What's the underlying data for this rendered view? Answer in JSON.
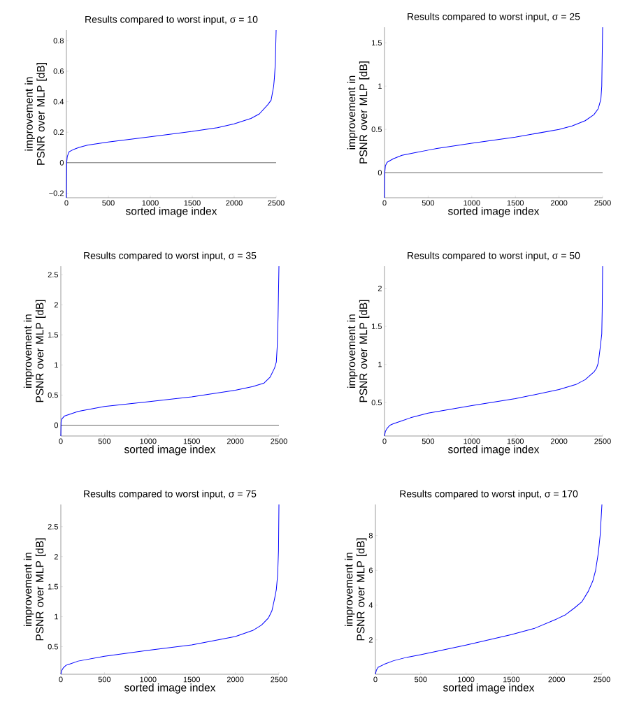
{
  "chart_data": [
    {
      "type": "line",
      "title": "Results compared to worst input, σ = 10",
      "xlabel": "sorted image index",
      "ylabel": "improvement in PSNR over MLP [dB]",
      "color": "#0000ff",
      "xlim": [
        0,
        2500
      ],
      "ylim": [
        -0.23,
        0.87
      ],
      "xticks": [
        0,
        500,
        1000,
        1500,
        2000,
        2500
      ],
      "yticks": [
        {
          "value": -0.2,
          "label": "−0.2"
        },
        0,
        0.2,
        0.4,
        0.6,
        0.8
      ],
      "ref_lines": [
        {
          "axis": "y",
          "value": 0,
          "color": "#000000"
        }
      ],
      "x": [
        0,
        3,
        10,
        30,
        60,
        100,
        150,
        250,
        500,
        1000,
        1500,
        1800,
        2000,
        2200,
        2300,
        2400,
        2440,
        2470,
        2480,
        2490,
        2500
      ],
      "values": [
        -0.23,
        0,
        0.04,
        0.07,
        0.08,
        0.09,
        0.1,
        0.115,
        0.135,
        0.17,
        0.205,
        0.23,
        0.255,
        0.29,
        0.32,
        0.38,
        0.41,
        0.5,
        0.56,
        0.65,
        0.87
      ]
    },
    {
      "type": "line",
      "title": "Results compared to worst input, σ = 25",
      "xlabel": "sorted image index",
      "ylabel": "improvement in PSNR over MLP [dB]",
      "color": "#0000ff",
      "xlim": [
        0,
        2500
      ],
      "ylim": [
        -0.29,
        1.68
      ],
      "xticks": [
        0,
        500,
        1000,
        1500,
        2000,
        2500
      ],
      "yticks": [
        0,
        0.5,
        1,
        1.5
      ],
      "ref_lines": [
        {
          "axis": "y",
          "value": 0,
          "color": "#000000"
        }
      ],
      "x": [
        0,
        3,
        10,
        30,
        100,
        200,
        350,
        500,
        600,
        1000,
        1500,
        2000,
        2150,
        2300,
        2400,
        2450,
        2480,
        2490,
        2500
      ],
      "values": [
        -0.29,
        0,
        0.08,
        0.12,
        0.16,
        0.2,
        0.23,
        0.26,
        0.28,
        0.34,
        0.41,
        0.5,
        0.54,
        0.6,
        0.67,
        0.74,
        0.85,
        1.0,
        1.68
      ]
    },
    {
      "type": "line",
      "title": "Results compared to worst input, σ = 35",
      "xlabel": "sorted image index",
      "ylabel": "improvement in PSNR over MLP [dB]",
      "color": "#0000ff",
      "xlim": [
        0,
        2500
      ],
      "ylim": [
        -0.18,
        2.64
      ],
      "xticks": [
        0,
        500,
        1000,
        1500,
        2000,
        2500
      ],
      "yticks": [
        0,
        0.5,
        1,
        1.5,
        2,
        2.5
      ],
      "ref_lines": [
        {
          "axis": "y",
          "value": 0,
          "color": "#000000"
        }
      ],
      "x": [
        0,
        3,
        10,
        40,
        200,
        500,
        1000,
        1500,
        2000,
        2200,
        2330,
        2400,
        2450,
        2470,
        2480,
        2490,
        2500
      ],
      "values": [
        -0.18,
        0.05,
        0.1,
        0.15,
        0.23,
        0.31,
        0.39,
        0.47,
        0.58,
        0.64,
        0.7,
        0.8,
        0.95,
        1.05,
        1.3,
        1.8,
        2.64
      ]
    },
    {
      "type": "line",
      "title": "Results compared to worst input, σ = 50",
      "xlabel": "sorted image index",
      "ylabel": "improvement in PSNR over MLP [dB]",
      "color": "#0000ff",
      "xlim": [
        0,
        2500
      ],
      "ylim": [
        0.06,
        2.29
      ],
      "xticks": [
        0,
        500,
        1000,
        1500,
        2000,
        2500
      ],
      "yticks": [
        0.5,
        1,
        1.5,
        2
      ],
      "x": [
        0,
        10,
        30,
        60,
        100,
        200,
        300,
        500,
        1000,
        1500,
        2000,
        2200,
        2300,
        2400,
        2430,
        2450,
        2470,
        2490,
        2495,
        2500
      ],
      "values": [
        0.06,
        0.12,
        0.16,
        0.2,
        0.22,
        0.26,
        0.3,
        0.36,
        0.46,
        0.55,
        0.67,
        0.74,
        0.8,
        0.9,
        0.95,
        1.02,
        1.2,
        1.4,
        1.7,
        2.29
      ]
    },
    {
      "type": "line",
      "title": "Results compared to worst input, σ = 75",
      "xlabel": "sorted image index",
      "ylabel": "improvement in PSNR over MLP [dB]",
      "color": "#0000ff",
      "xlim": [
        0,
        2500
      ],
      "ylim": [
        0.04,
        2.87
      ],
      "xticks": [
        0,
        500,
        1000,
        1500,
        2000,
        2500
      ],
      "yticks": [
        0.5,
        1,
        1.5,
        2,
        2.5
      ],
      "x": [
        0,
        10,
        30,
        60,
        100,
        200,
        500,
        1000,
        1500,
        2000,
        2200,
        2300,
        2380,
        2420,
        2450,
        2470,
        2485,
        2495,
        2500
      ],
      "values": [
        0.04,
        0.1,
        0.15,
        0.19,
        0.21,
        0.26,
        0.34,
        0.44,
        0.53,
        0.67,
        0.77,
        0.86,
        0.98,
        1.1,
        1.3,
        1.45,
        1.7,
        2.1,
        2.87
      ]
    },
    {
      "type": "line",
      "title": "Results compared to worst input, σ = 170",
      "xlabel": "sorted image index",
      "ylabel": "improvement in PSNR over MLP [dB]",
      "color": "#0000ff",
      "xlim": [
        0,
        2500
      ],
      "ylim": [
        0.02,
        9.79
      ],
      "xticks": [
        0,
        500,
        1000,
        1500,
        2000,
        2500
      ],
      "yticks": [
        2,
        4,
        6,
        8
      ],
      "x": [
        0,
        10,
        30,
        100,
        200,
        350,
        500,
        1000,
        1500,
        1750,
        2000,
        2100,
        2200,
        2280,
        2350,
        2400,
        2430,
        2460,
        2480,
        2500
      ],
      "values": [
        0.02,
        0.25,
        0.42,
        0.6,
        0.8,
        1.0,
        1.15,
        1.7,
        2.3,
        2.65,
        3.2,
        3.45,
        3.85,
        4.2,
        4.8,
        5.4,
        6.0,
        7.0,
        8.0,
        9.79
      ]
    }
  ]
}
